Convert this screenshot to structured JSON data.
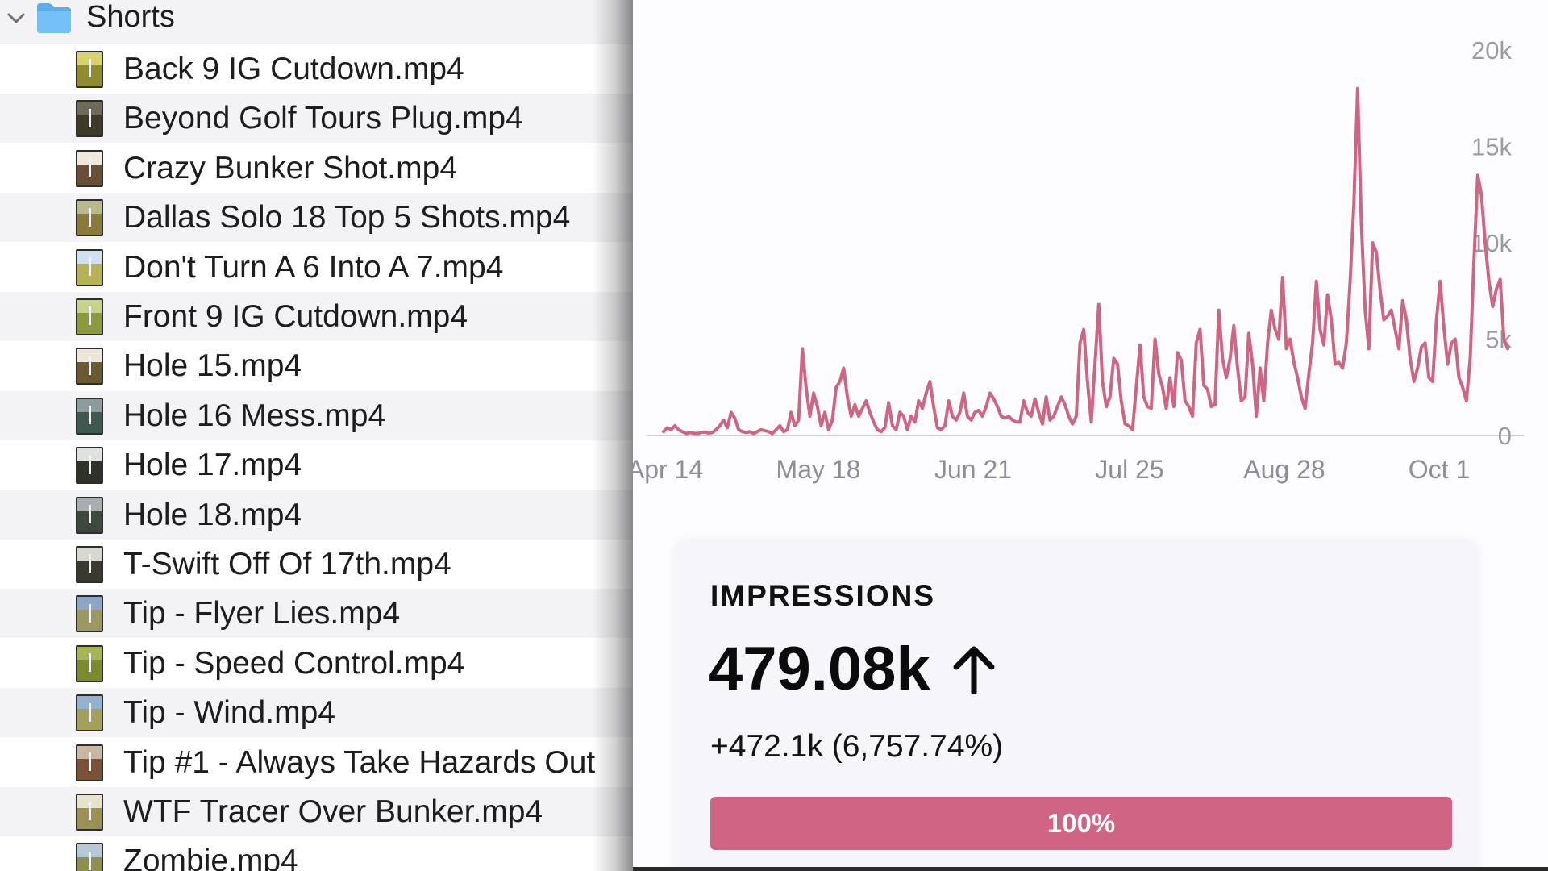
{
  "finder": {
    "folder": {
      "label": "Shorts",
      "icon": "folder-icon",
      "expanded": true
    },
    "files": [
      {
        "label": "Back 9 IG Cutdown.mp4",
        "sky": "#d9d16a",
        "grass": "#8f8b2e"
      },
      {
        "label": "Beyond Golf Tours Plug.mp4",
        "sky": "#6d6a55",
        "grass": "#3f3a28"
      },
      {
        "label": "Crazy Bunker Shot.mp4",
        "sky": "#efe9dc",
        "grass": "#6a4e36"
      },
      {
        "label": "Dallas Solo 18 Top 5 Shots.mp4",
        "sky": "#b9b98a",
        "grass": "#8a7a3a"
      },
      {
        "label": "Don't Turn A 6 Into A 7.mp4",
        "sky": "#cfe0ef",
        "grass": "#b7b352"
      },
      {
        "label": "Front 9 IG Cutdown.mp4",
        "sky": "#c6d38a",
        "grass": "#8d9a3c"
      },
      {
        "label": "Hole 15.mp4",
        "sky": "#ece7d6",
        "grass": "#6b5a31"
      },
      {
        "label": "Hole 16 Mess.mp4",
        "sky": "#8c9b9b",
        "grass": "#3e5a50"
      },
      {
        "label": "Hole 17.mp4",
        "sky": "#dfe1de",
        "grass": "#2f3327"
      },
      {
        "label": "Hole 18.mp4",
        "sky": "#a7aeb0",
        "grass": "#3b4a3c"
      },
      {
        "label": "T-Swift Off Of 17th.mp4",
        "sky": "#d7d7d0",
        "grass": "#3a3930"
      },
      {
        "label": "Tip - Flyer Lies.mp4",
        "sky": "#8da5c7",
        "grass": "#9b9860"
      },
      {
        "label": "Tip - Speed Control.mp4",
        "sky": "#a7b454",
        "grass": "#7b8a2c"
      },
      {
        "label": "Tip - Wind.mp4",
        "sky": "#91b3cf",
        "grass": "#a4a05a"
      },
      {
        "label": "Tip #1 - Always Take Hazards Out",
        "sky": "#c9b7a0",
        "grass": "#7b5237"
      },
      {
        "label": "WTF Tracer Over Bunker.mp4",
        "sky": "#e7e3cd",
        "grass": "#9a9152"
      },
      {
        "label": "Zombie.mp4",
        "sky": "#b7c9d9",
        "grass": "#8e8f4a"
      }
    ]
  },
  "chart_data": {
    "type": "line",
    "color": "#d06583",
    "x_tick_labels": [
      "Apr 14",
      "May 18",
      "Jun 21",
      "Jul 25",
      "Aug 28",
      "Oct 1"
    ],
    "y_tick_labels": [
      "0",
      "5k",
      "10k",
      "15k",
      "20k"
    ],
    "ylim": [
      0,
      20000
    ],
    "start_date": "Apr 14",
    "series": [
      {
        "values": [
          200,
          400,
          300,
          500,
          300,
          200,
          100,
          150,
          120,
          100,
          150,
          180,
          120,
          150,
          300,
          500,
          800,
          400,
          1200,
          900,
          300,
          200,
          150,
          200,
          100,
          200,
          300,
          250,
          200,
          100,
          300,
          500,
          200,
          300,
          1200,
          500,
          800,
          4500,
          2500,
          1000,
          2200,
          1500,
          500,
          1200,
          300,
          800,
          2500,
          2800,
          3500,
          2000,
          1000,
          1600,
          1000,
          1400,
          1800,
          1200,
          700,
          300,
          200,
          400,
          1700,
          500,
          300,
          1200,
          1000,
          300,
          1000,
          700,
          1800,
          1400,
          2200,
          2800,
          1500,
          400,
          300,
          500,
          1800,
          1000,
          800,
          1200,
          2200,
          1000,
          800,
          1200,
          1300,
          1000,
          1500,
          2200,
          1900,
          1500,
          1000,
          900,
          1000,
          800,
          700,
          700,
          1800,
          1200,
          1000,
          1900,
          1200,
          600,
          2000,
          800,
          1000,
          1500,
          2000,
          1600,
          1000,
          600,
          1000,
          4800,
          5500,
          2800,
          700,
          3700,
          6800,
          2800,
          1500,
          2000,
          4000,
          3700,
          1800,
          600,
          500,
          300,
          2500,
          4700,
          2000,
          1500,
          1400,
          5000,
          3200,
          2500,
          1400,
          3000,
          1500,
          4300,
          3900,
          1800,
          1500,
          1000,
          4800,
          5500,
          2600,
          2400,
          1500,
          1600,
          6500,
          4000,
          3000,
          4000,
          5700,
          3500,
          1800,
          2000,
          5300,
          3700,
          1000,
          3500,
          1800,
          4800,
          6500,
          5500,
          5000,
          8200,
          4500,
          5000,
          3800,
          3000,
          2000,
          1400,
          3200,
          4800,
          8000,
          5500,
          4700,
          7300,
          6000,
          3700,
          3800,
          3500,
          4800,
          8000,
          12000,
          18000,
          11000,
          6500,
          4500,
          10000,
          9500,
          7500,
          6000,
          6200,
          6500,
          5500,
          4500,
          7000,
          6000,
          4000,
          2800,
          3500,
          4600,
          4800,
          3000,
          2800,
          6000,
          8000,
          5600,
          3700,
          4800,
          5000,
          3000,
          2500,
          1800,
          4000,
          9000,
          13500,
          12500,
          10000,
          8000,
          6700,
          7600,
          8100,
          5000,
          4500
        ]
      }
    ]
  },
  "card": {
    "title": "IMPRESSIONS",
    "value": "479.08k",
    "trend_icon": "arrow-up-icon",
    "change": "+472.1k (6,757.74%)",
    "progress_percent": 100,
    "progress_label": "100%"
  }
}
